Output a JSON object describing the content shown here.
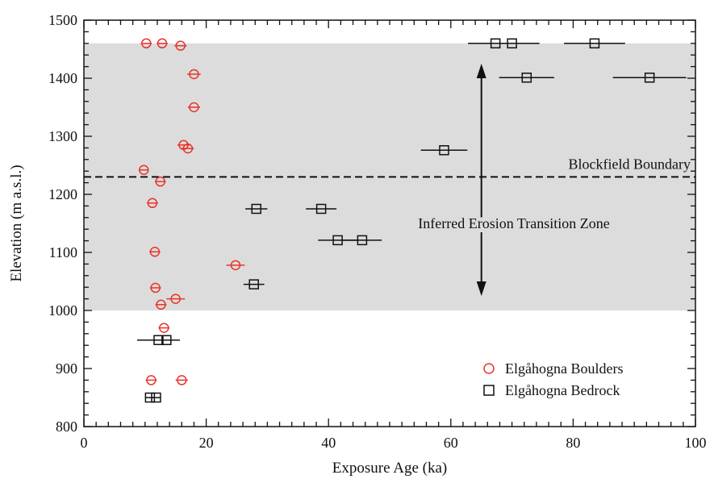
{
  "chart_data": {
    "type": "scatter",
    "xlabel": "Exposure Age (ka)",
    "ylabel": "Elevation (m a.s.l.)",
    "xlim": [
      0,
      100
    ],
    "ylim": [
      800,
      1500
    ],
    "xticks": [
      "0",
      "20",
      "40",
      "60",
      "80",
      "100"
    ],
    "yticks": [
      "800",
      "900",
      "1000",
      "1100",
      "1200",
      "1300",
      "1400",
      "1500"
    ],
    "grid": false,
    "legend_position": "bottom-right",
    "transition_zone": {
      "y_from": 1000,
      "y_to": 1460,
      "color": "#dcdcdc"
    },
    "boundary_line": {
      "y": 1230
    },
    "annotations": {
      "boundary_label": "Blockfield Boundary",
      "zone_label": "Inferred Erosion Transition Zone",
      "arrow_x": 65,
      "arrow_y_top": 1425,
      "arrow_y_bottom": 1025
    },
    "series": [
      {
        "name": "Elgåhogna Boulders",
        "marker": "circle",
        "color": "#e8342c",
        "points": [
          {
            "x": 10.2,
            "y": 1460,
            "err": 0.9
          },
          {
            "x": 12.8,
            "y": 1460,
            "err": 0.9
          },
          {
            "x": 15.8,
            "y": 1456,
            "err": 1.0
          },
          {
            "x": 18.0,
            "y": 1407,
            "err": 1.1
          },
          {
            "x": 18.0,
            "y": 1350,
            "err": 1.0
          },
          {
            "x": 16.3,
            "y": 1285,
            "err": 1.0
          },
          {
            "x": 17.0,
            "y": 1279,
            "err": 1.0
          },
          {
            "x": 9.8,
            "y": 1242,
            "err": 0.8
          },
          {
            "x": 12.5,
            "y": 1222,
            "err": 0.9
          },
          {
            "x": 11.2,
            "y": 1185,
            "err": 0.9
          },
          {
            "x": 11.6,
            "y": 1101,
            "err": 0.9
          },
          {
            "x": 11.7,
            "y": 1039,
            "err": 0.9
          },
          {
            "x": 12.6,
            "y": 1010,
            "err": 0.9
          },
          {
            "x": 15.0,
            "y": 1020,
            "err": 1.5
          },
          {
            "x": 24.8,
            "y": 1078,
            "err": 1.5
          },
          {
            "x": 13.1,
            "y": 970,
            "err": 0.9
          },
          {
            "x": 11.0,
            "y": 880,
            "err": 0.9
          },
          {
            "x": 16.0,
            "y": 880,
            "err": 1.0
          }
        ]
      },
      {
        "name": "Elgåhogna Bedrock",
        "marker": "square",
        "color": "#111111",
        "points": [
          {
            "x": 67.3,
            "y": 1460,
            "err": 4.5
          },
          {
            "x": 70.0,
            "y": 1460,
            "err": 4.5
          },
          {
            "x": 83.5,
            "y": 1460,
            "err": 5.0
          },
          {
            "x": 72.4,
            "y": 1401,
            "err": 4.5
          },
          {
            "x": 92.5,
            "y": 1401,
            "err": 6.0
          },
          {
            "x": 58.9,
            "y": 1276,
            "err": 3.8
          },
          {
            "x": 28.2,
            "y": 1175,
            "err": 1.8
          },
          {
            "x": 38.8,
            "y": 1175,
            "err": 2.5
          },
          {
            "x": 41.5,
            "y": 1121,
            "err": 3.2
          },
          {
            "x": 45.5,
            "y": 1121,
            "err": 3.2
          },
          {
            "x": 27.8,
            "y": 1045,
            "err": 1.7
          },
          {
            "x": 12.2,
            "y": 949,
            "err": 3.5
          },
          {
            "x": 13.5,
            "y": 949,
            "err": 1.2
          },
          {
            "x": 10.8,
            "y": 850,
            "err": 0.8
          },
          {
            "x": 11.8,
            "y": 850,
            "err": 0.8
          }
        ]
      }
    ]
  }
}
